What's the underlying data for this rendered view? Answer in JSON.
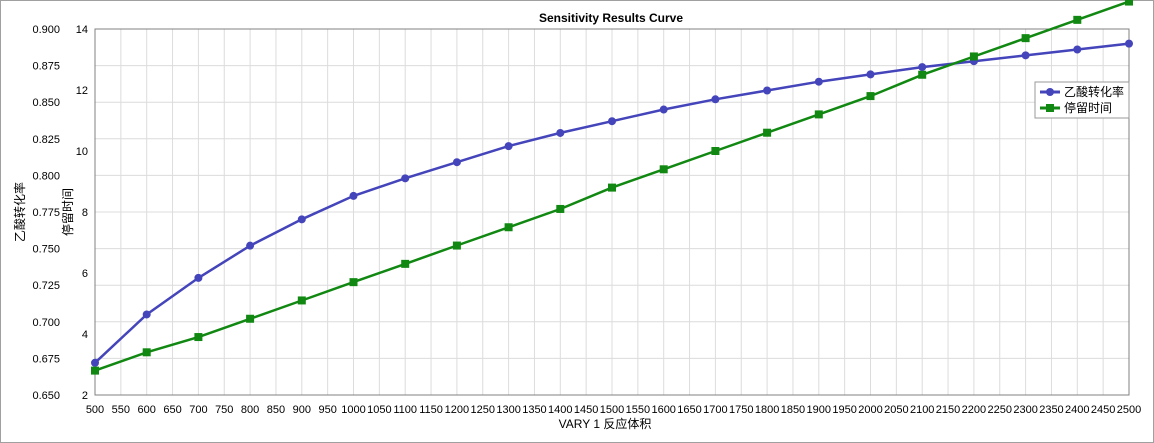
{
  "chart_data": {
    "type": "line",
    "title": "Sensitivity Results Curve",
    "xlabel": "VARY  1 反应体积",
    "ylabel_left": "乙酸转化率",
    "ylabel_right": "停留时间",
    "x": [
      500,
      600,
      700,
      800,
      900,
      1000,
      1100,
      1200,
      1300,
      1400,
      1500,
      1600,
      1700,
      1800,
      1900,
      2000,
      2100,
      2200,
      2300,
      2400,
      2500
    ],
    "x_ticks": [
      500,
      550,
      600,
      650,
      700,
      750,
      800,
      850,
      900,
      950,
      1000,
      1050,
      1100,
      1150,
      1200,
      1250,
      1300,
      1350,
      1400,
      1450,
      1500,
      1550,
      1600,
      1650,
      1700,
      1750,
      1800,
      1850,
      1900,
      1950,
      2000,
      2050,
      2100,
      2150,
      2200,
      2250,
      2300,
      2350,
      2400,
      2450,
      2500
    ],
    "xlim": [
      500,
      2500
    ],
    "ylim_left": [
      0.65,
      0.9
    ],
    "y_ticks_left": [
      "0.650",
      "0.675",
      "0.700",
      "0.725",
      "0.750",
      "0.775",
      "0.800",
      "0.825",
      "0.850",
      "0.875",
      "0.900"
    ],
    "ylim_right": [
      2,
      14
    ],
    "y_ticks_right": [
      "2",
      "4",
      "6",
      "8",
      "10",
      "12",
      "14"
    ],
    "grid": true,
    "legend_position": "right",
    "series": [
      {
        "name": "乙酸转化率",
        "axis": "left",
        "color": "#4444bb",
        "marker": "circle",
        "values": [
          0.672,
          0.705,
          0.73,
          0.752,
          0.77,
          0.786,
          0.798,
          0.809,
          0.82,
          0.829,
          0.837,
          0.845,
          0.852,
          0.858,
          0.864,
          0.869,
          0.874,
          0.878,
          0.882,
          0.886,
          0.89
        ]
      },
      {
        "name": "停留时间",
        "axis": "right",
        "color": "#118811",
        "marker": "square",
        "values": [
          2.8,
          3.4,
          3.9,
          4.5,
          5.1,
          5.7,
          6.3,
          6.9,
          7.5,
          8.1,
          8.8,
          9.4,
          10.0,
          10.6,
          11.2,
          11.8,
          12.5,
          13.1,
          13.7,
          14.3,
          14.9
        ]
      }
    ]
  }
}
